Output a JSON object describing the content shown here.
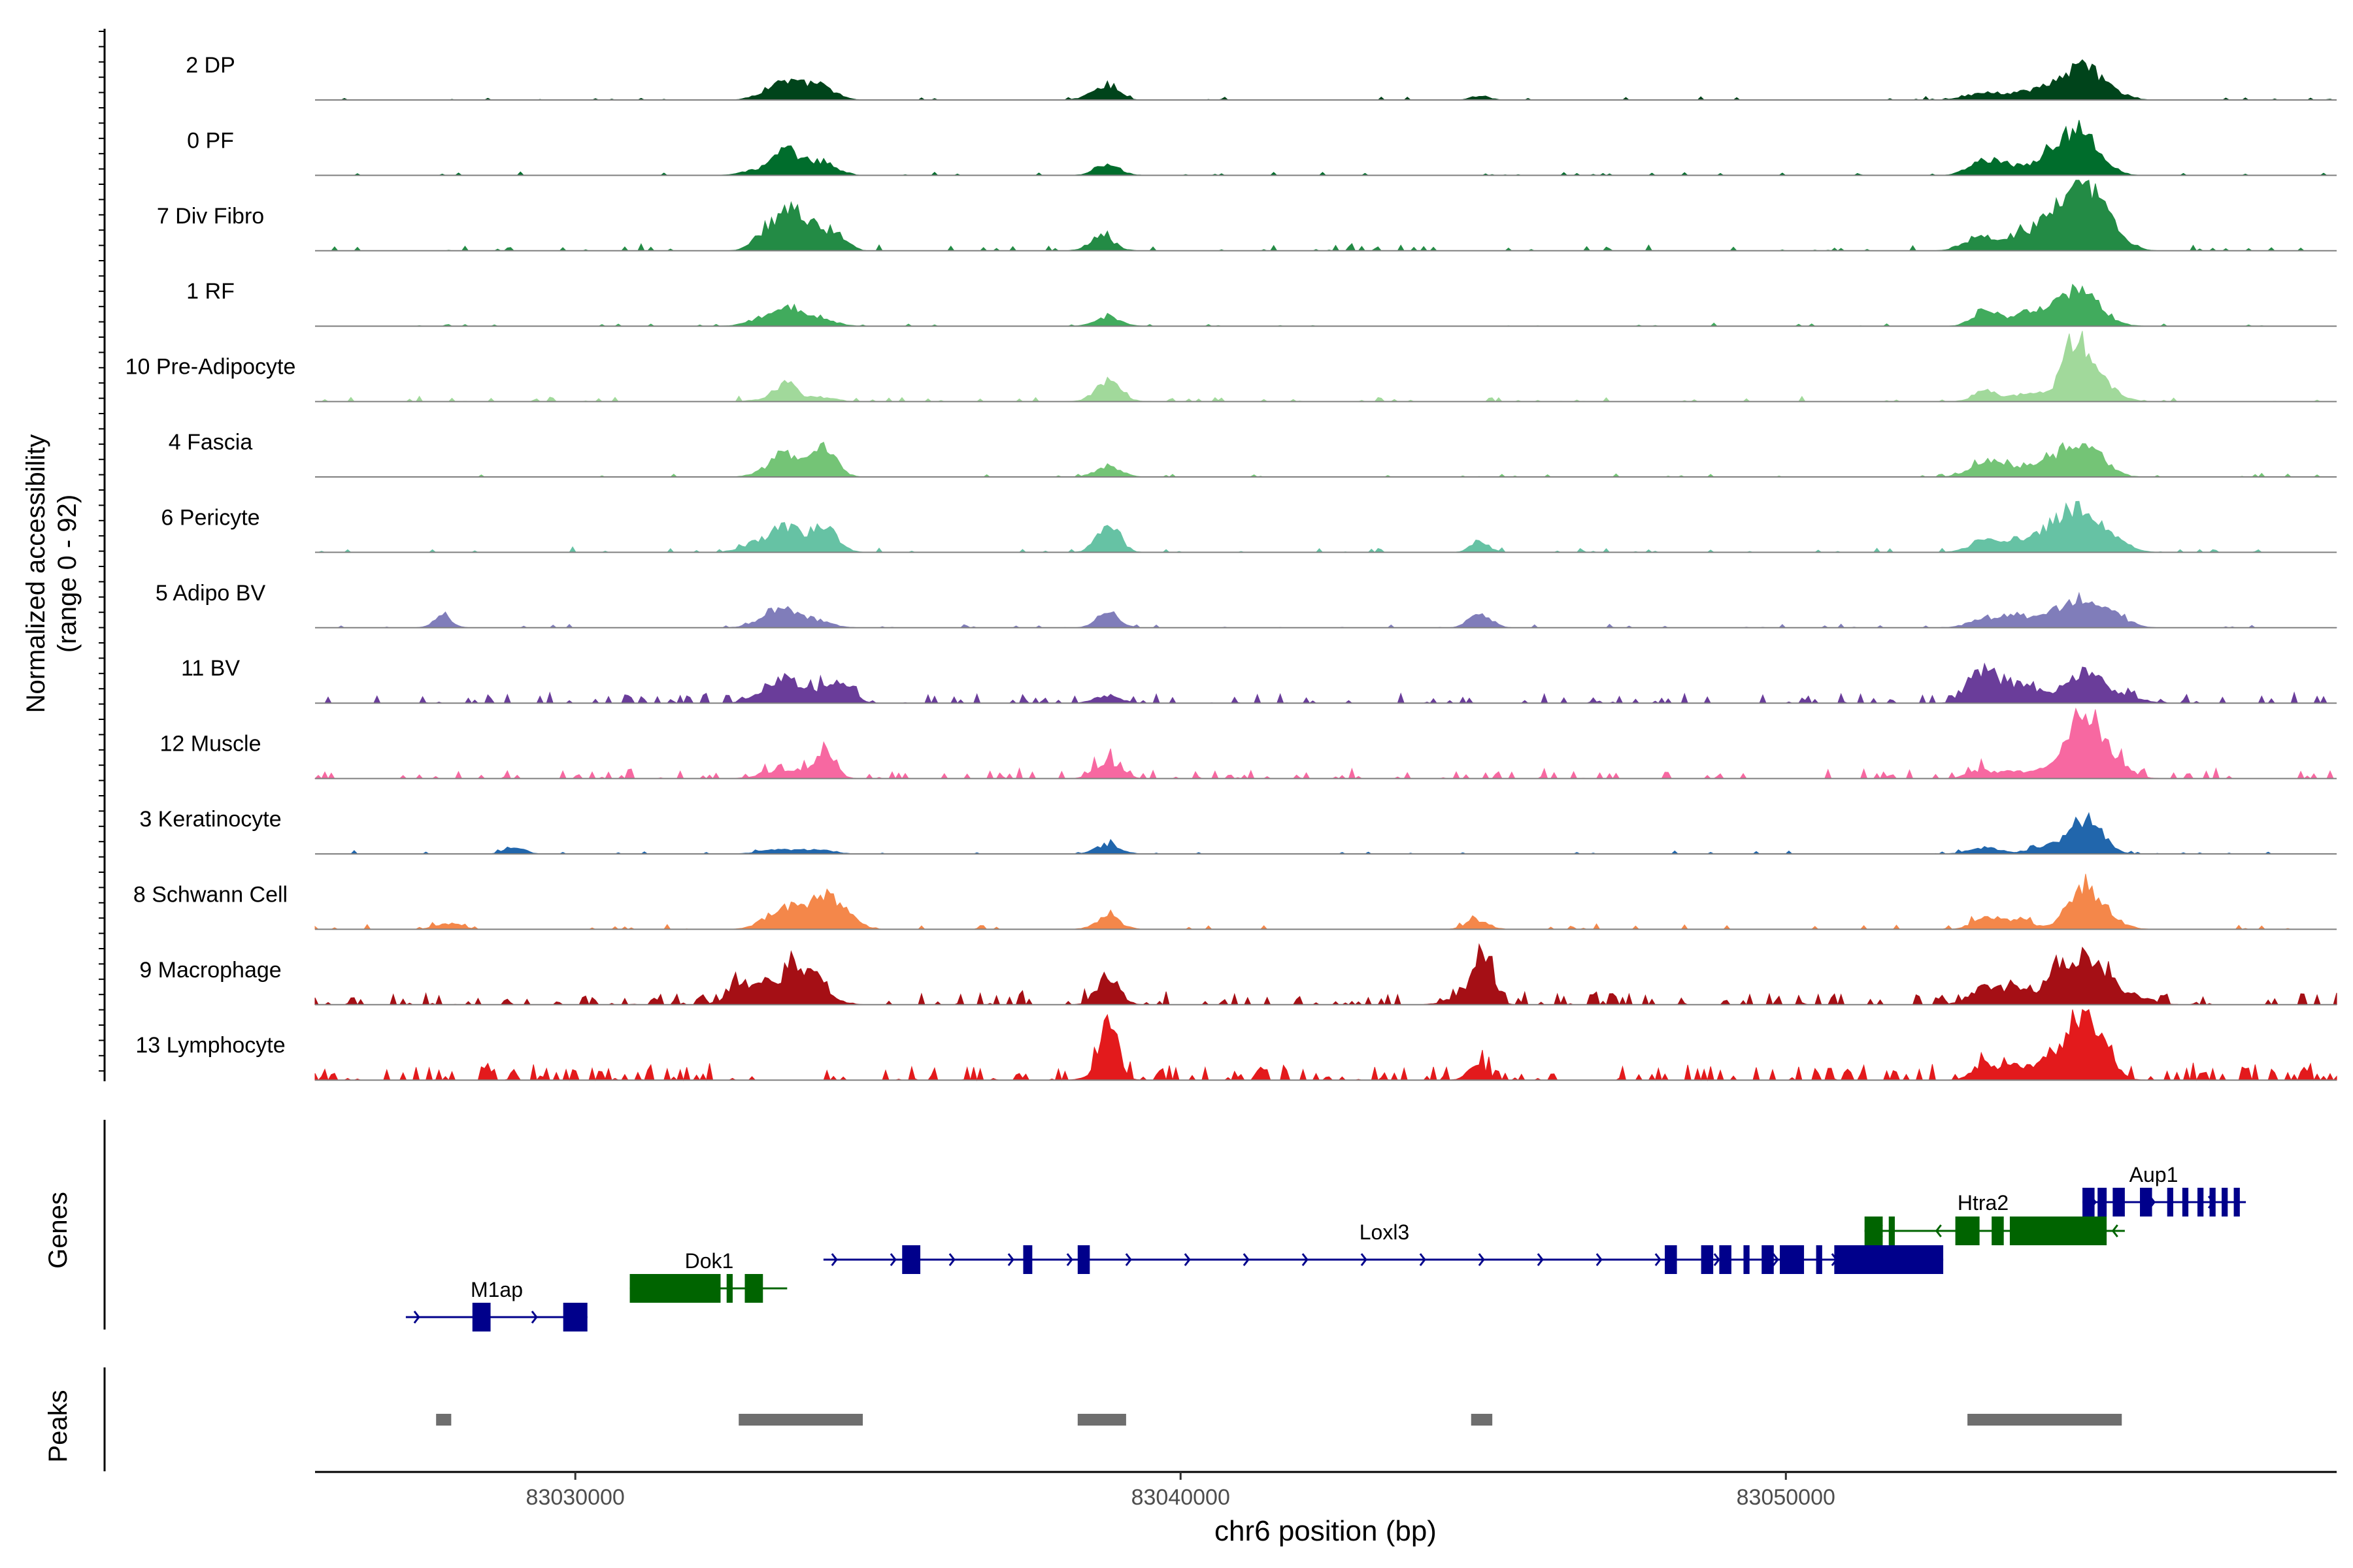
{
  "chart_data": {
    "type": "area",
    "title": "",
    "chromosome": "chr6",
    "x_range": [
      83025700,
      83059100
    ],
    "x_ticks": [
      83030000,
      83040000,
      83050000
    ],
    "x_tick_labels": [
      "83030000",
      "83040000",
      "83050000"
    ],
    "xlabel": "chr6 position (bp)",
    "ylabel_line1": "Normalized accessibility",
    "ylabel_line2": "(range 0 - 92)",
    "y_range": [
      0,
      92
    ],
    "genes_label": "Genes",
    "peaks_label": "Peaks",
    "tracks": [
      {
        "name": "2 DP",
        "color": "#00441b",
        "noise": 2,
        "peaks": [
          [
            83033300,
            250,
            8
          ],
          [
            83033500,
            300,
            14
          ],
          [
            83033900,
            300,
            9
          ],
          [
            83034100,
            200,
            10
          ],
          [
            83038800,
            180,
            16
          ],
          [
            83038600,
            200,
            6
          ],
          [
            83044950,
            150,
            5
          ],
          [
            83053300,
            300,
            9
          ],
          [
            83053850,
            200,
            7
          ],
          [
            83054250,
            200,
            11
          ],
          [
            83054800,
            280,
            34
          ],
          [
            83055050,
            250,
            18
          ],
          [
            83055500,
            200,
            6
          ]
        ]
      },
      {
        "name": "0 PF",
        "color": "#006d2c",
        "noise": 2,
        "peaks": [
          [
            83033000,
            250,
            6
          ],
          [
            83033500,
            220,
            30
          ],
          [
            83034000,
            250,
            10
          ],
          [
            83034150,
            200,
            8
          ],
          [
            83038800,
            200,
            14
          ],
          [
            83053300,
            250,
            20
          ],
          [
            83053800,
            200,
            10
          ],
          [
            83054300,
            200,
            15
          ],
          [
            83054750,
            300,
            50
          ],
          [
            83055100,
            250,
            18
          ]
        ]
      },
      {
        "name": "7 Div Fibro",
        "color": "#238b45",
        "noise": 4,
        "peaks": [
          [
            83033150,
            200,
            22
          ],
          [
            83033500,
            200,
            38
          ],
          [
            83033800,
            200,
            28
          ],
          [
            83034150,
            200,
            18
          ],
          [
            83034400,
            150,
            12
          ],
          [
            83038700,
            200,
            18
          ],
          [
            83053200,
            250,
            18
          ],
          [
            83053800,
            250,
            15
          ],
          [
            83054250,
            250,
            22
          ],
          [
            83054800,
            300,
            85
          ],
          [
            83055200,
            250,
            30
          ],
          [
            83055600,
            200,
            8
          ]
        ]
      },
      {
        "name": "1 RF",
        "color": "#41ab5d",
        "noise": 2,
        "peaks": [
          [
            83033100,
            250,
            10
          ],
          [
            83033500,
            200,
            22
          ],
          [
            83034000,
            250,
            12
          ],
          [
            83038800,
            200,
            12
          ],
          [
            83053300,
            200,
            22
          ],
          [
            83053900,
            200,
            14
          ],
          [
            83054300,
            200,
            16
          ],
          [
            83054800,
            280,
            45
          ],
          [
            83055200,
            250,
            10
          ]
        ]
      },
      {
        "name": "10 Pre-Adipocyte",
        "color": "#a1d99b",
        "noise": 3,
        "peaks": [
          [
            83033500,
            150,
            18
          ],
          [
            83033300,
            250,
            6
          ],
          [
            83034000,
            250,
            6
          ],
          [
            83038800,
            200,
            28
          ],
          [
            83053300,
            200,
            14
          ],
          [
            83053900,
            200,
            8
          ],
          [
            83054300,
            200,
            8
          ],
          [
            83054800,
            200,
            68
          ],
          [
            83055000,
            300,
            22
          ],
          [
            83055400,
            200,
            8
          ]
        ]
      },
      {
        "name": "4 Fascia",
        "color": "#74c476",
        "noise": 2,
        "peaks": [
          [
            83033300,
            250,
            12
          ],
          [
            83033500,
            200,
            20
          ],
          [
            83034000,
            250,
            14
          ],
          [
            83034150,
            180,
            25
          ],
          [
            83038800,
            200,
            14
          ],
          [
            83053300,
            250,
            22
          ],
          [
            83053850,
            200,
            10
          ],
          [
            83054250,
            200,
            16
          ],
          [
            83054800,
            280,
            42
          ],
          [
            83055150,
            250,
            14
          ]
        ]
      },
      {
        "name": "6 Pericyte",
        "color": "#66c2a4",
        "noise": 3,
        "peaks": [
          [
            83033000,
            250,
            12
          ],
          [
            83033450,
            200,
            30
          ],
          [
            83033850,
            200,
            14
          ],
          [
            83034150,
            200,
            28
          ],
          [
            83038800,
            180,
            38
          ],
          [
            83044950,
            150,
            14
          ],
          [
            83053300,
            250,
            16
          ],
          [
            83053800,
            200,
            12
          ],
          [
            83054300,
            250,
            20
          ],
          [
            83054800,
            300,
            50
          ],
          [
            83055200,
            250,
            16
          ],
          [
            83055600,
            200,
            6
          ]
        ]
      },
      {
        "name": "5 Adipo BV",
        "color": "#807dba",
        "noise": 2,
        "peaks": [
          [
            83027800,
            150,
            14
          ],
          [
            83033200,
            250,
            12
          ],
          [
            83033500,
            250,
            16
          ],
          [
            83034000,
            250,
            8
          ],
          [
            83038800,
            180,
            20
          ],
          [
            83044950,
            180,
            18
          ],
          [
            83053300,
            250,
            12
          ],
          [
            83053800,
            200,
            16
          ],
          [
            83054300,
            200,
            10
          ],
          [
            83054800,
            300,
            30
          ],
          [
            83055200,
            250,
            18
          ],
          [
            83055600,
            200,
            6
          ]
        ]
      },
      {
        "name": "11 BV",
        "color": "#6a3d9a",
        "noise": 6,
        "peaks": [
          [
            83033200,
            250,
            16
          ],
          [
            83033500,
            200,
            22
          ],
          [
            83034000,
            250,
            14
          ],
          [
            83034400,
            200,
            20
          ],
          [
            83038800,
            200,
            10
          ],
          [
            83053200,
            200,
            40
          ],
          [
            83053600,
            200,
            16
          ],
          [
            83054000,
            200,
            22
          ],
          [
            83054800,
            250,
            36
          ],
          [
            83055200,
            200,
            18
          ],
          [
            83055700,
            250,
            6
          ]
        ]
      },
      {
        "name": "12 Muscle",
        "color": "#f768a1",
        "noise": 6,
        "peaks": [
          [
            83033300,
            250,
            10
          ],
          [
            83034150,
            150,
            38
          ],
          [
            83033800,
            200,
            10
          ],
          [
            83038800,
            200,
            22
          ],
          [
            83053200,
            200,
            10
          ],
          [
            83053700,
            200,
            8
          ],
          [
            83054200,
            200,
            10
          ],
          [
            83054900,
            250,
            80
          ],
          [
            83055200,
            250,
            25
          ],
          [
            83055600,
            200,
            8
          ]
        ]
      },
      {
        "name": "3 Keratinocyte",
        "color": "#2166ac",
        "noise": 2,
        "peaks": [
          [
            83029000,
            150,
            10
          ],
          [
            83033300,
            250,
            6
          ],
          [
            83034000,
            250,
            6
          ],
          [
            83038800,
            200,
            12
          ],
          [
            83053300,
            250,
            8
          ],
          [
            83054300,
            250,
            8
          ],
          [
            83054900,
            250,
            40
          ],
          [
            83055200,
            200,
            10
          ]
        ]
      },
      {
        "name": "8 Schwann Cell",
        "color": "#f4874a",
        "noise": 3,
        "peaks": [
          [
            83027900,
            200,
            8
          ],
          [
            83033300,
            250,
            16
          ],
          [
            83033700,
            250,
            22
          ],
          [
            83034150,
            200,
            38
          ],
          [
            83034500,
            200,
            16
          ],
          [
            83038800,
            200,
            16
          ],
          [
            83044900,
            180,
            12
          ],
          [
            83053300,
            200,
            18
          ],
          [
            83053850,
            200,
            14
          ],
          [
            83054900,
            250,
            50
          ],
          [
            83055300,
            250,
            14
          ]
        ]
      },
      {
        "name": "9 Macrophage",
        "color": "#a50f15",
        "noise": 8,
        "peaks": [
          [
            83032800,
            250,
            24
          ],
          [
            83033300,
            250,
            20
          ],
          [
            83033700,
            250,
            34
          ],
          [
            83034000,
            250,
            20
          ],
          [
            83038800,
            180,
            36
          ],
          [
            83045000,
            150,
            60
          ],
          [
            83044700,
            250,
            14
          ],
          [
            83053300,
            250,
            22
          ],
          [
            83053800,
            200,
            18
          ],
          [
            83054400,
            200,
            22
          ],
          [
            83054850,
            250,
            58
          ],
          [
            83055250,
            250,
            24
          ],
          [
            83055800,
            250,
            10
          ]
        ]
      },
      {
        "name": "13 Lymphocyte",
        "color": "#e31a1c",
        "noise": 10,
        "peaks": [
          [
            83038850,
            120,
            68
          ],
          [
            83038750,
            200,
            20
          ],
          [
            83044900,
            150,
            18
          ],
          [
            83053300,
            200,
            20
          ],
          [
            83053800,
            200,
            16
          ],
          [
            83054300,
            200,
            22
          ],
          [
            83054850,
            250,
            80
          ],
          [
            83055250,
            200,
            30
          ]
        ]
      }
    ],
    "genes": [
      {
        "name": "M1ap",
        "strand": "+",
        "start": 83027200,
        "end": 83030200,
        "row": 2,
        "color": "#00008b",
        "exons": [
          [
            83028300,
            83028600
          ],
          [
            83029800,
            83030200
          ]
        ]
      },
      {
        "name": "Dok1",
        "strand": "+",
        "start": 83030900,
        "end": 83033500,
        "row": 1,
        "color": "#006400",
        "exons": [
          [
            83030900,
            83032400
          ],
          [
            83032500,
            83032600
          ],
          [
            83032800,
            83033100
          ]
        ]
      },
      {
        "name": "Loxl3",
        "strand": "+",
        "start": 83034100,
        "end": 83052600,
        "row": 1,
        "color": "#00008b",
        "exons": [
          [
            83035400,
            83035700
          ],
          [
            83037400,
            83037550
          ],
          [
            83038300,
            83038500
          ],
          [
            83048000,
            83048200
          ],
          [
            83048600,
            83048800
          ],
          [
            83048900,
            83049100
          ],
          [
            83049300,
            83049400
          ],
          [
            83049600,
            83049800
          ],
          [
            83049900,
            83050300
          ],
          [
            83050500,
            83050600
          ],
          [
            83050800,
            83052600
          ]
        ]
      },
      {
        "name": "Htra2",
        "strand": "-",
        "start": 83051300,
        "end": 83055600,
        "row": 0,
        "color": "#006400",
        "exons": [
          [
            83051300,
            83051600
          ],
          [
            83051700,
            83051800
          ],
          [
            83052800,
            83053200
          ],
          [
            83053400,
            83053600
          ],
          [
            83053700,
            83055300
          ]
        ]
      },
      {
        "name": "Aup1",
        "strand": "+",
        "start": 83054900,
        "end": 83057600,
        "row": -1,
        "color": "#00008b",
        "exons": [
          [
            83054900,
            83055100
          ],
          [
            83055150,
            83055300
          ],
          [
            83055400,
            83055600
          ],
          [
            83055850,
            83056050
          ],
          [
            83056300,
            83056400
          ],
          [
            83056550,
            83056650
          ],
          [
            83056800,
            83056900
          ],
          [
            83057000,
            83057100
          ],
          [
            83057200,
            83057300
          ],
          [
            83057400,
            83057500
          ]
        ]
      }
    ],
    "peak_regions": [
      [
        83027700,
        83027950
      ],
      [
        83032700,
        83034750
      ],
      [
        83038300,
        83039100
      ],
      [
        83044800,
        83045150
      ],
      [
        83053000,
        83055550
      ]
    ]
  }
}
